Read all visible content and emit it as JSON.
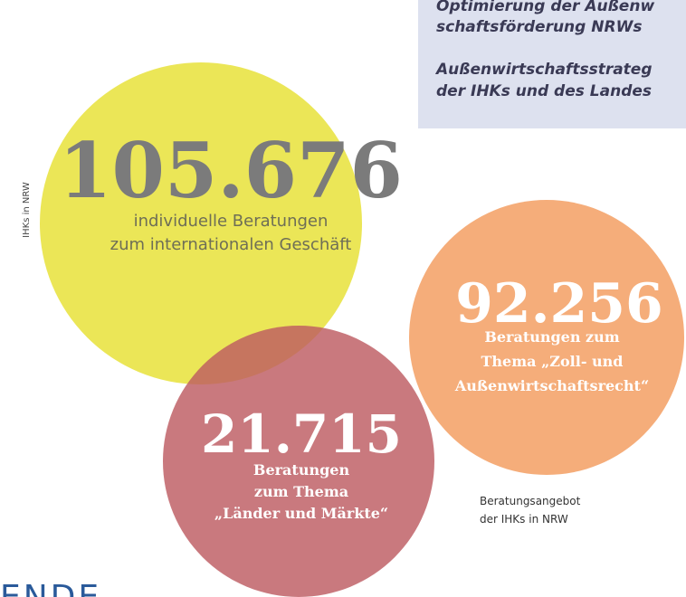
{
  "sidebar": "IHKs in NRW",
  "info_box": {
    "lines": [
      "Optimierung der Außenw",
      "schaftsförderung NRWs",
      "Außenwirtschaftsstrateg",
      "der IHKs und des Landes"
    ]
  },
  "bubbles": [
    {
      "number": "105.676",
      "lines": [
        "individuelle Beratungen",
        "zum internationalen Geschäft"
      ]
    },
    {
      "number": "92.256",
      "lines": [
        "Beratungen zum",
        "Thema „Zoll- und",
        "Außenwirtschaftsrecht“"
      ]
    },
    {
      "number": "21.715",
      "lines": [
        "Beratungen",
        "zum Thema",
        "„Länder und Märkte“"
      ]
    }
  ],
  "caption": [
    "Beratungsangebot",
    "der IHKs in NRW"
  ],
  "footer_heading": "ENDE"
}
